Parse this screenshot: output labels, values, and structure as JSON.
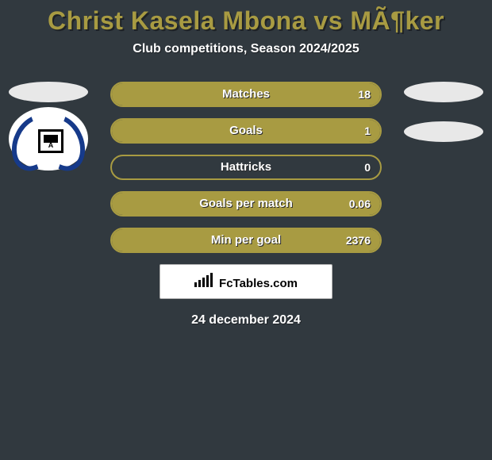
{
  "title": "Christ Kasela Mbona vs MÃ¶ker",
  "subtitle": "Club competitions, Season 2024/2025",
  "date": "24 december 2024",
  "brand": "FcTables.com",
  "colors": {
    "bar_border": "#a89b42",
    "bar_fill": "#a89b42"
  },
  "stats": [
    {
      "label": "Matches",
      "value": "18",
      "fill_pct": 100
    },
    {
      "label": "Goals",
      "value": "1",
      "fill_pct": 100
    },
    {
      "label": "Hattricks",
      "value": "0",
      "fill_pct": 0
    },
    {
      "label": "Goals per match",
      "value": "0.06",
      "fill_pct": 100
    },
    {
      "label": "Min per goal",
      "value": "2376",
      "fill_pct": 100
    }
  ]
}
